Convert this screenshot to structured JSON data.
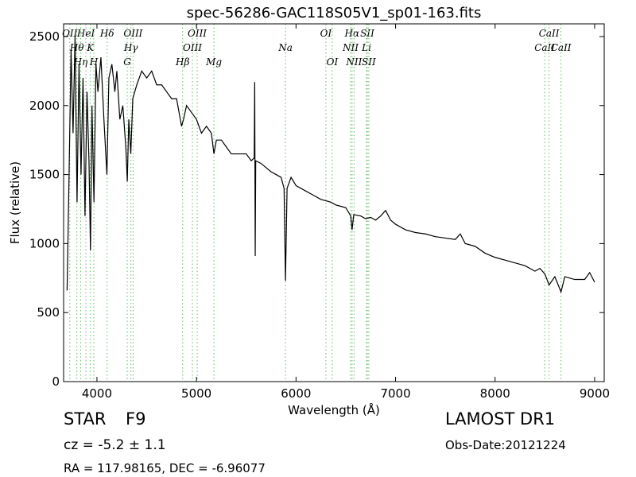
{
  "chart_data": {
    "type": "line",
    "title": "spec-56286-GAC118S05V1_sp01-163.fits",
    "x_label": "Wavelength (Å)",
    "y_label": "Flux (relative)",
    "xlim": [
      3665,
      9096
    ],
    "ylim": [
      0,
      2592
    ],
    "xticks": [
      4000,
      5000,
      6000,
      7000,
      8000,
      9000
    ],
    "yticks": [
      0,
      500,
      1000,
      1500,
      2000,
      2500
    ],
    "series": [
      {
        "color": "#000000",
        "x": [
          3700,
          3720,
          3740,
          3760,
          3780,
          3800,
          3820,
          3840,
          3860,
          3880,
          3900,
          3920,
          3935,
          3950,
          3970,
          3990,
          4010,
          4040,
          4070,
          4100,
          4120,
          4150,
          4180,
          4200,
          4230,
          4260,
          4290,
          4305,
          4320,
          4340,
          4360,
          4400,
          4450,
          4500,
          4550,
          4600,
          4650,
          4700,
          4750,
          4800,
          4850,
          4870,
          4900,
          4950,
          5000,
          5050,
          5100,
          5150,
          5175,
          5200,
          5250,
          5300,
          5350,
          5400,
          5450,
          5500,
          5550,
          5580,
          5585,
          5590,
          5595,
          5650,
          5700,
          5750,
          5800,
          5850,
          5880,
          5894,
          5910,
          5950,
          6000,
          6050,
          6100,
          6150,
          6200,
          6250,
          6300,
          6350,
          6400,
          6450,
          6500,
          6550,
          6563,
          6580,
          6650,
          6700,
          6750,
          6800,
          6850,
          6900,
          6950,
          7000,
          7100,
          7200,
          7300,
          7400,
          7500,
          7600,
          7650,
          7700,
          7800,
          7900,
          8000,
          8100,
          8200,
          8300,
          8400,
          8450,
          8500,
          8542,
          8600,
          8662,
          8700,
          8800,
          8900,
          8950,
          9000
        ],
        "values": [
          660,
          1500,
          2400,
          1800,
          2500,
          1300,
          2300,
          1500,
          2200,
          1200,
          2100,
          1600,
          950,
          2000,
          1300,
          2300,
          2100,
          2350,
          1900,
          1500,
          2200,
          2300,
          2100,
          2250,
          1900,
          2000,
          1700,
          1450,
          1900,
          1650,
          2050,
          2150,
          2250,
          2200,
          2250,
          2150,
          2150,
          2100,
          2050,
          2050,
          1850,
          1900,
          2000,
          1950,
          1900,
          1800,
          1850,
          1800,
          1650,
          1750,
          1750,
          1700,
          1650,
          1650,
          1650,
          1650,
          1600,
          1620,
          2170,
          910,
          1600,
          1580,
          1550,
          1520,
          1500,
          1480,
          1400,
          730,
          1400,
          1480,
          1420,
          1400,
          1380,
          1360,
          1340,
          1320,
          1310,
          1300,
          1280,
          1270,
          1260,
          1200,
          1100,
          1210,
          1200,
          1180,
          1190,
          1170,
          1200,
          1240,
          1170,
          1140,
          1100,
          1080,
          1070,
          1050,
          1040,
          1030,
          1070,
          1000,
          980,
          930,
          900,
          880,
          860,
          840,
          800,
          820,
          780,
          700,
          760,
          650,
          760,
          740,
          740,
          790,
          720
        ]
      }
    ],
    "line_color": "#66bb66",
    "lines": [
      {
        "name": "OII",
        "wavelength": 3727
      },
      {
        "name": "Hθ",
        "wavelength": 3798
      },
      {
        "name": "Hη",
        "wavelength": 3836
      },
      {
        "name": "HeI",
        "wavelength": 3889
      },
      {
        "name": "K",
        "wavelength": 3934
      },
      {
        "name": "H",
        "wavelength": 3969
      },
      {
        "name": "Hδ",
        "wavelength": 4102
      },
      {
        "name": "Hγ",
        "wavelength": 4341
      },
      {
        "name": "G",
        "wavelength": 4304
      },
      {
        "name": "OIII",
        "wavelength": 4363
      },
      {
        "name": "OIII",
        "wavelength": 4959
      },
      {
        "name": "Hβ",
        "wavelength": 4861
      },
      {
        "name": "OIII",
        "wavelength": 5007
      },
      {
        "name": "Na",
        "wavelength": 5894
      },
      {
        "name": "Mg",
        "wavelength": 5175
      },
      {
        "name": "OI",
        "wavelength": 6300
      },
      {
        "name": "NII",
        "wavelength": 6548
      },
      {
        "name": "OI",
        "wavelength": 6364
      },
      {
        "name": "Hα",
        "wavelength": 6563
      },
      {
        "name": "Li",
        "wavelength": 6708
      },
      {
        "name": "NII",
        "wavelength": 6583
      },
      {
        "name": "SII",
        "wavelength": 6716
      },
      {
        "name": "CaII",
        "wavelength": 8498
      },
      {
        "name": "SII",
        "wavelength": 6731
      },
      {
        "name": "CaII",
        "wavelength": 8542
      },
      {
        "name": "CaII",
        "wavelength": 8662
      }
    ],
    "annotations": [
      "STAR",
      "F9",
      "cz = -5.2 ± 1.1",
      "RA = 117.98165, DEC = -6.96077",
      "LAMOST DR1",
      "Obs-Date:20121224"
    ]
  }
}
